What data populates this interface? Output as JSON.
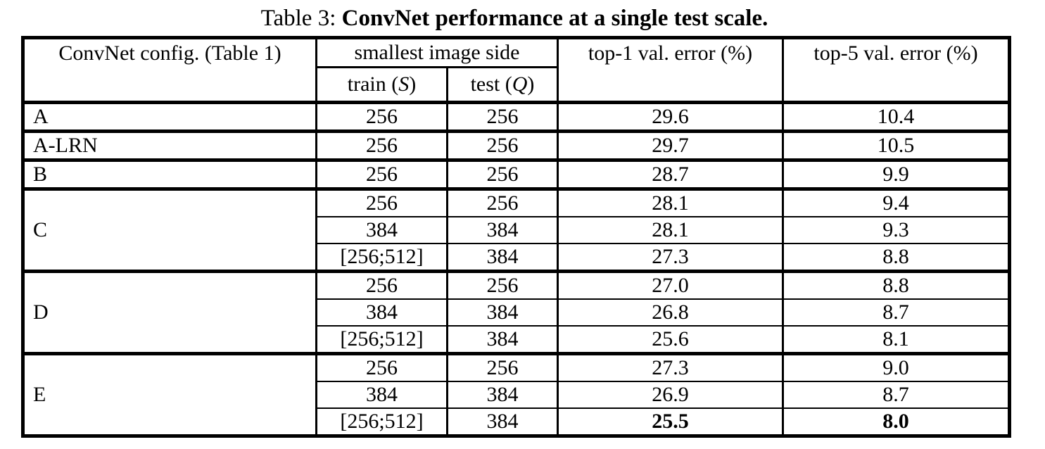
{
  "caption": {
    "prefix": "Table 3: ",
    "title": "ConvNet performance at a single test scale."
  },
  "table": {
    "header": {
      "config": "ConvNet config. (Table 1)",
      "image_side_group": "smallest image side",
      "train_prefix": "train (",
      "train_var": "S",
      "train_suffix": ")",
      "test_prefix": "test (",
      "test_var": "Q",
      "test_suffix": ")",
      "top1": "top-1 val. error (%)",
      "top5": "top-5 val. error (%)"
    },
    "groups": [
      {
        "config": "A",
        "rows": [
          {
            "train": "256",
            "test": "256",
            "top1": "29.6",
            "top5": "10.4",
            "bold_errors": false
          }
        ]
      },
      {
        "config": "A-LRN",
        "rows": [
          {
            "train": "256",
            "test": "256",
            "top1": "29.7",
            "top5": "10.5",
            "bold_errors": false
          }
        ]
      },
      {
        "config": "B",
        "rows": [
          {
            "train": "256",
            "test": "256",
            "top1": "28.7",
            "top5": "9.9",
            "bold_errors": false
          }
        ]
      },
      {
        "config": "C",
        "rows": [
          {
            "train": "256",
            "test": "256",
            "top1": "28.1",
            "top5": "9.4",
            "bold_errors": false
          },
          {
            "train": "384",
            "test": "384",
            "top1": "28.1",
            "top5": "9.3",
            "bold_errors": false
          },
          {
            "train": "[256;512]",
            "test": "384",
            "top1": "27.3",
            "top5": "8.8",
            "bold_errors": false
          }
        ]
      },
      {
        "config": "D",
        "rows": [
          {
            "train": "256",
            "test": "256",
            "top1": "27.0",
            "top5": "8.8",
            "bold_errors": false
          },
          {
            "train": "384",
            "test": "384",
            "top1": "26.8",
            "top5": "8.7",
            "bold_errors": false
          },
          {
            "train": "[256;512]",
            "test": "384",
            "top1": "25.6",
            "top5": "8.1",
            "bold_errors": false
          }
        ]
      },
      {
        "config": "E",
        "rows": [
          {
            "train": "256",
            "test": "256",
            "top1": "27.3",
            "top5": "9.0",
            "bold_errors": false
          },
          {
            "train": "384",
            "test": "384",
            "top1": "26.9",
            "top5": "8.7",
            "bold_errors": false
          },
          {
            "train": "[256;512]",
            "test": "384",
            "top1": "25.5",
            "top5": "8.0",
            "bold_errors": true
          }
        ]
      }
    ]
  }
}
